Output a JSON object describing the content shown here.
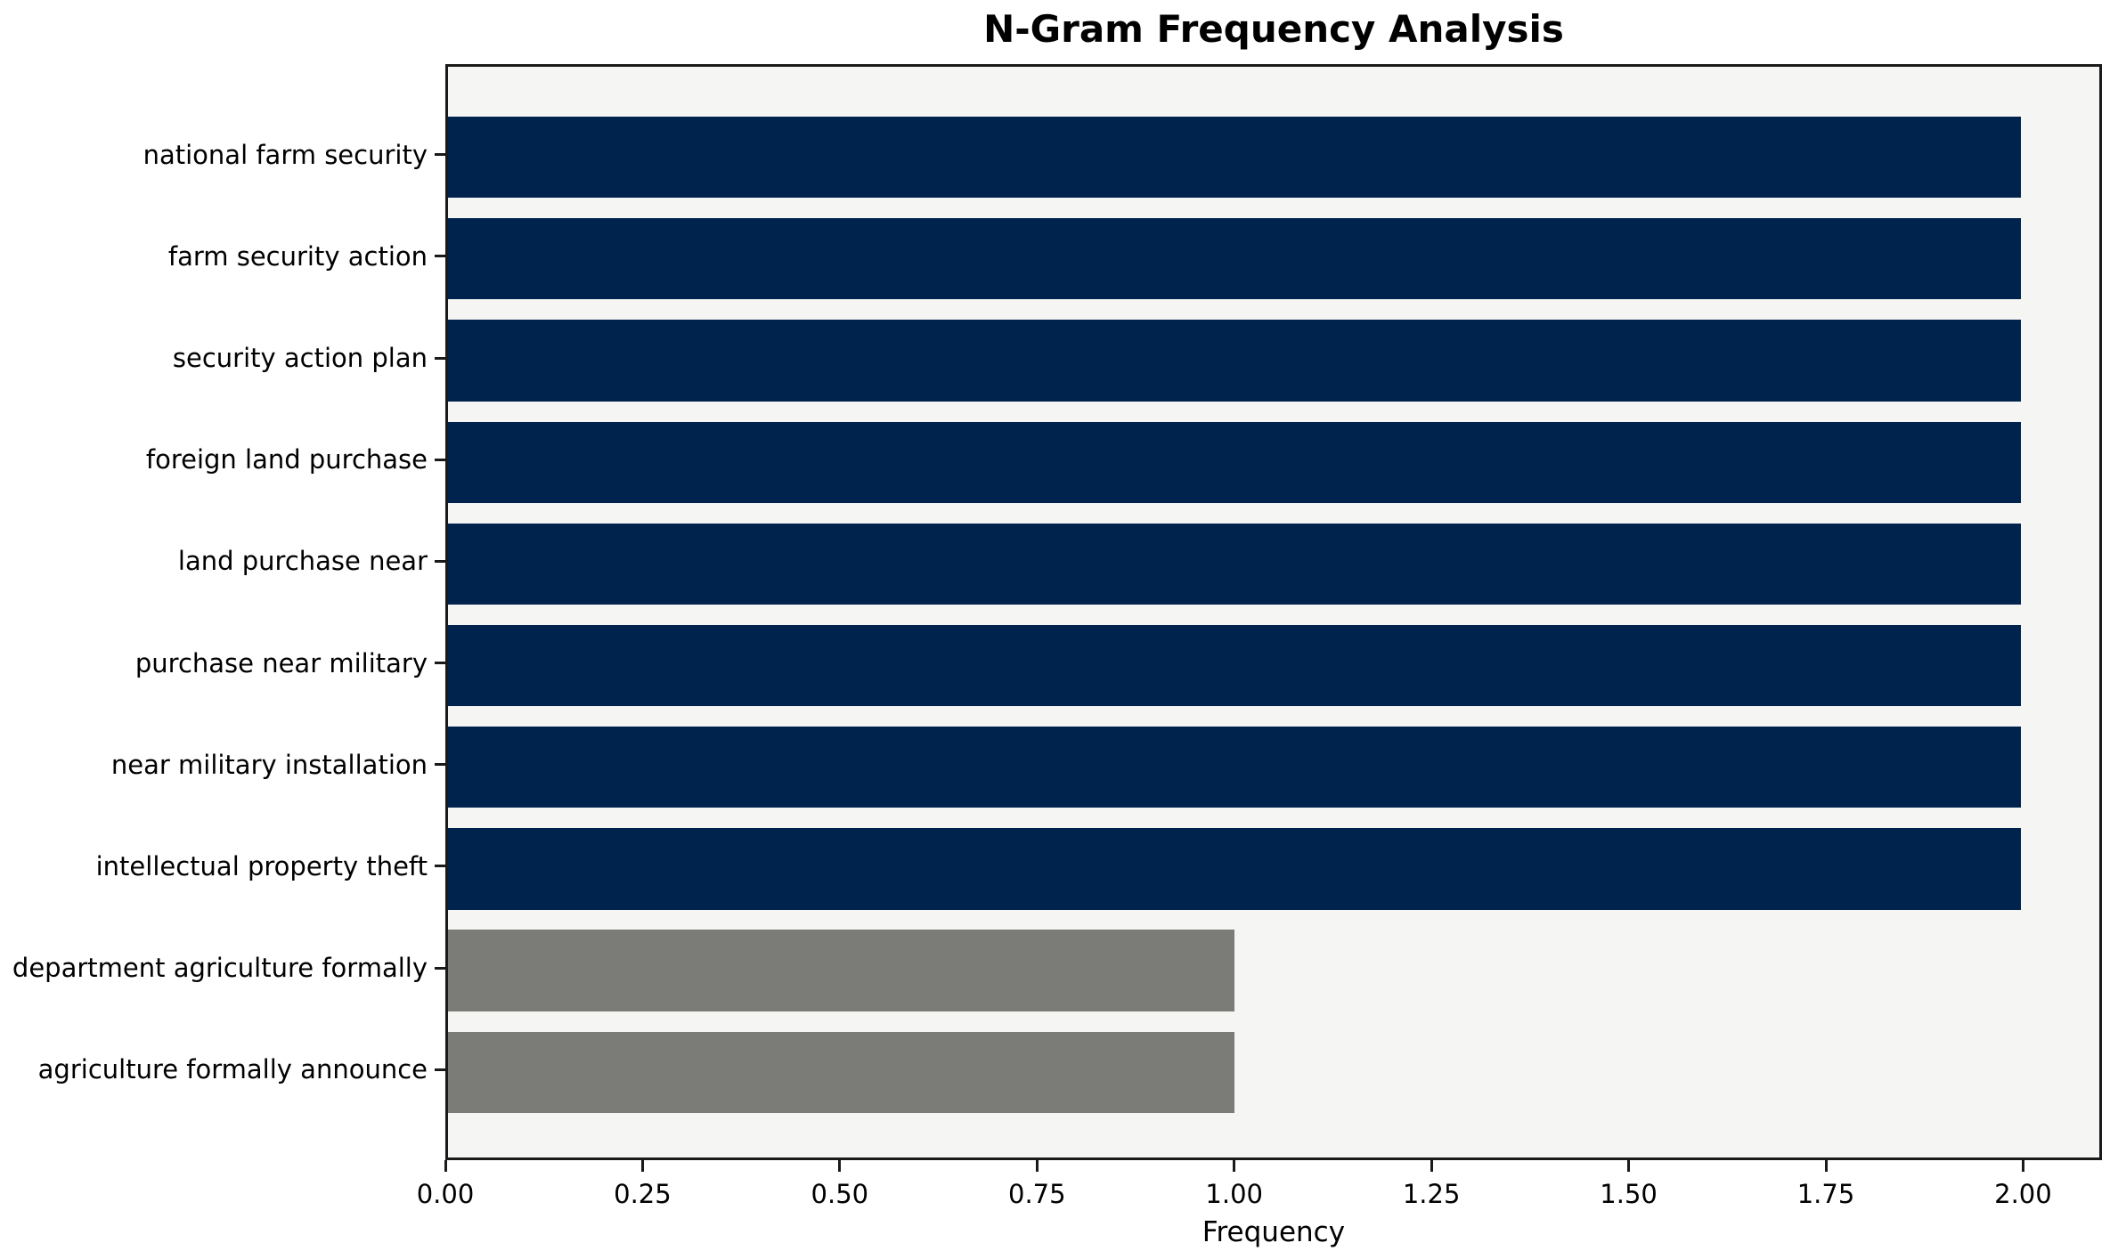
{
  "chart_data": {
    "type": "bar",
    "orientation": "horizontal",
    "title": "N-Gram Frequency Analysis",
    "xlabel": "Frequency",
    "ylabel": "",
    "categories": [
      "national farm security",
      "farm security action",
      "security action plan",
      "foreign land purchase",
      "land purchase near",
      "purchase near military",
      "near military installation",
      "intellectual property theft",
      "department agriculture formally",
      "agriculture formally announce"
    ],
    "values": [
      2,
      2,
      2,
      2,
      2,
      2,
      2,
      2,
      1,
      1
    ],
    "bar_colors": [
      "#00234e",
      "#00234e",
      "#00234e",
      "#00234e",
      "#00234e",
      "#00234e",
      "#00234e",
      "#00234e",
      "#7b7b78",
      "#7b7b78"
    ],
    "xticks": [
      {
        "value": 0.0,
        "label": "0.00"
      },
      {
        "value": 0.25,
        "label": "0.25"
      },
      {
        "value": 0.5,
        "label": "0.50"
      },
      {
        "value": 0.75,
        "label": "0.75"
      },
      {
        "value": 1.0,
        "label": "1.00"
      },
      {
        "value": 1.25,
        "label": "1.25"
      },
      {
        "value": 1.5,
        "label": "1.50"
      },
      {
        "value": 1.75,
        "label": "1.75"
      },
      {
        "value": 2.0,
        "label": "2.00"
      }
    ],
    "xlim": [
      0,
      2.1
    ],
    "grid": false,
    "legend": null,
    "colors": {
      "primary_bar": "#00234e",
      "secondary_bar": "#7b7b78",
      "plot_background": "#f5f5f3",
      "figure_background": "#ffffff",
      "axis": "#1a1a1a"
    }
  }
}
